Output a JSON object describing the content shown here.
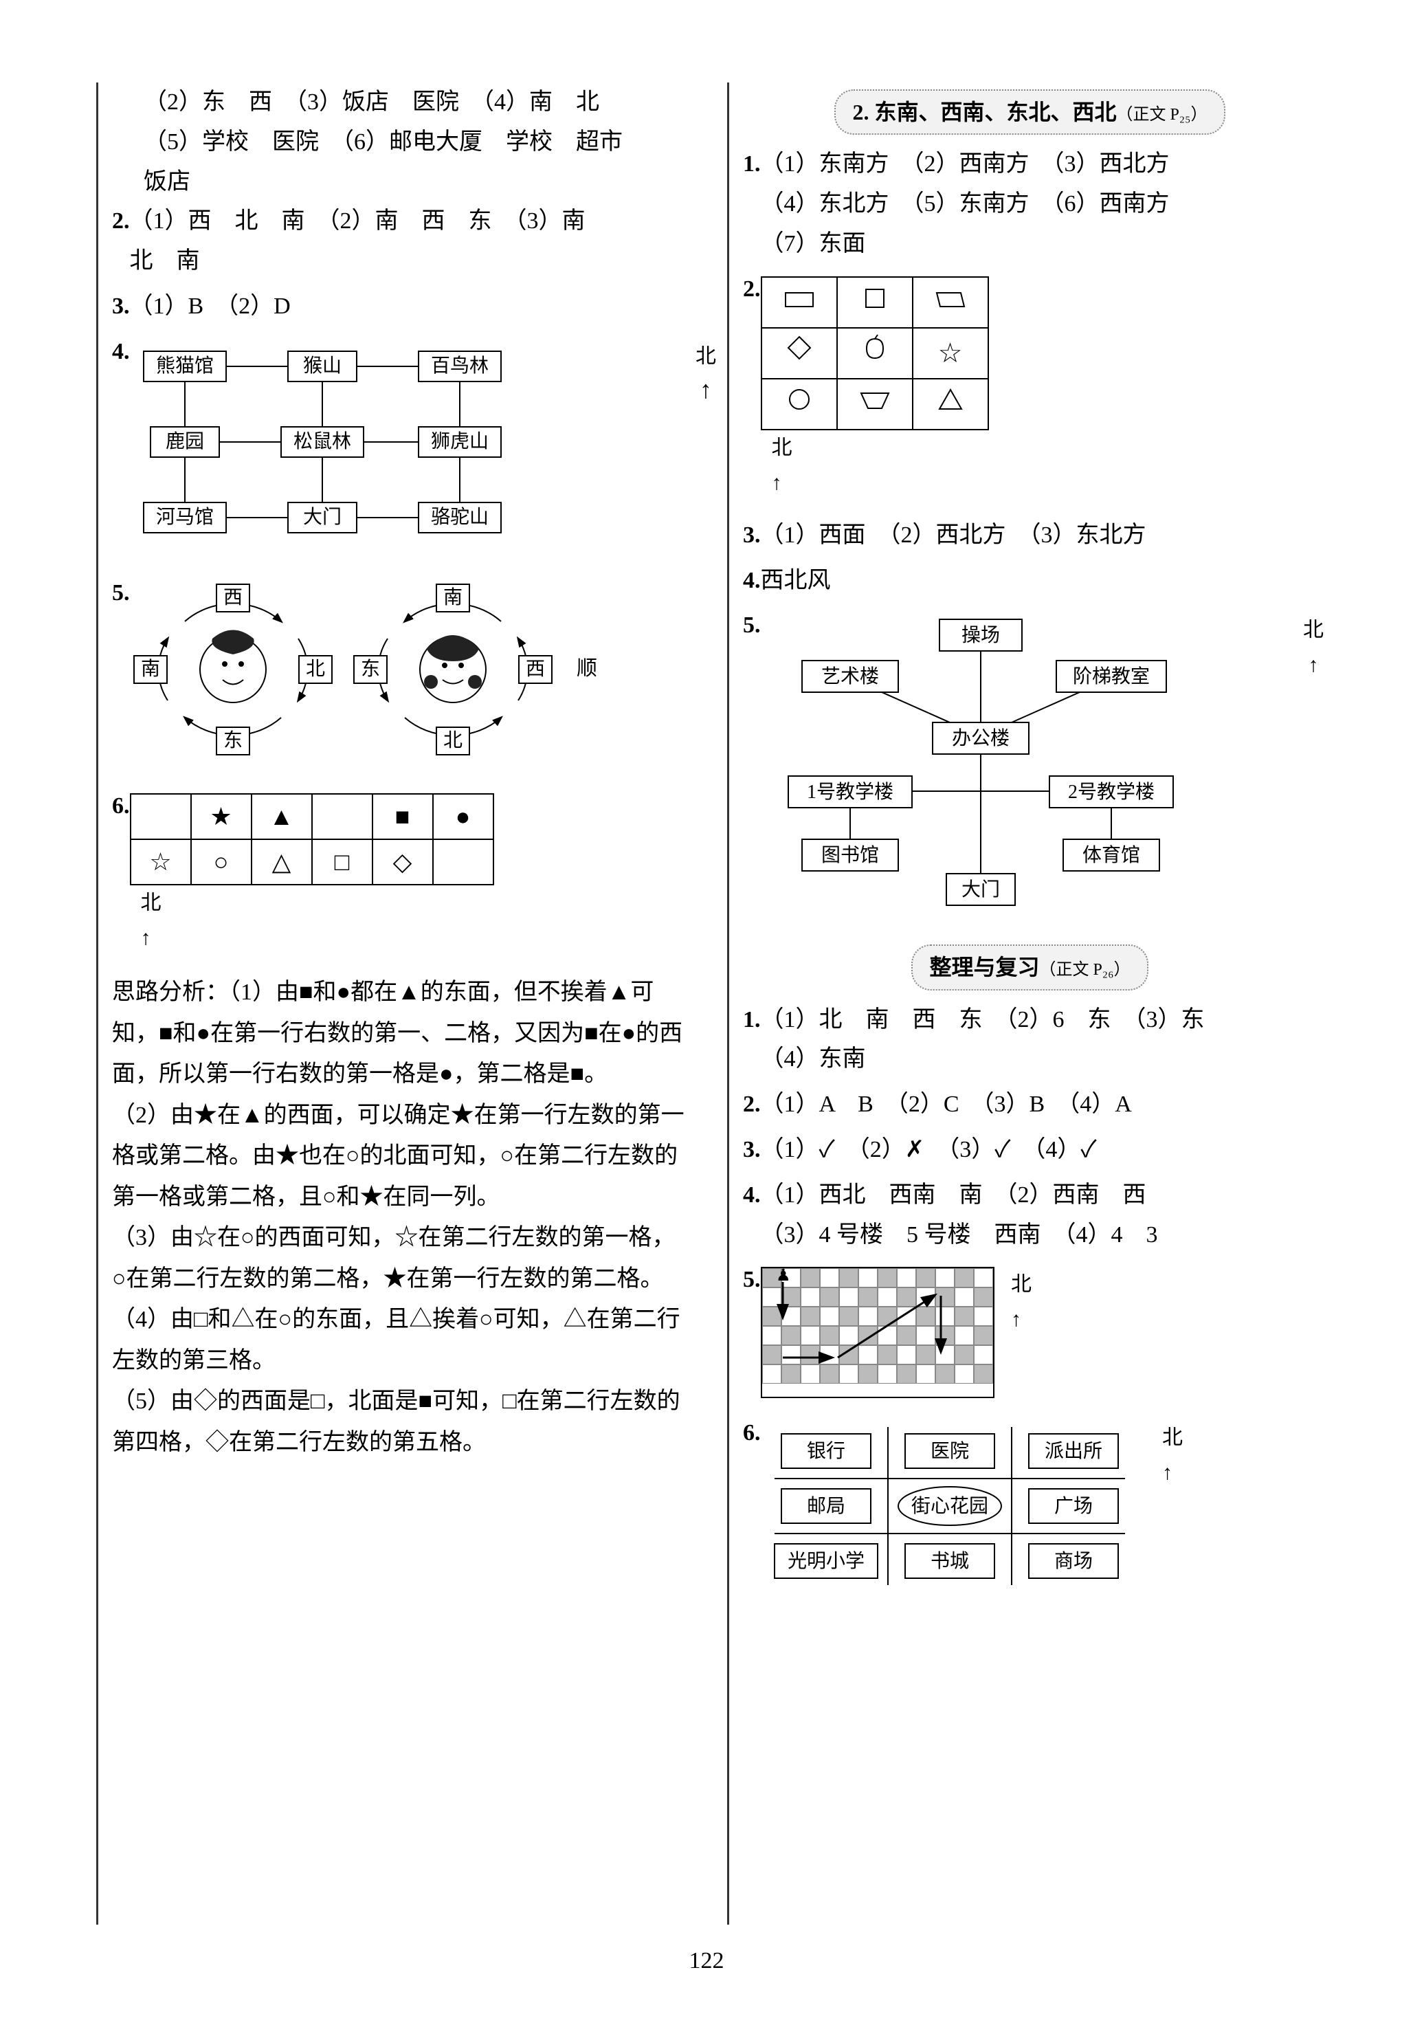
{
  "page_number": "122",
  "left": {
    "q1_line1": "（2）东　西　（3）饭店　医院　（4）南　北",
    "q1_line2": "（5）学校　医院　（6）邮电大厦　学校　超市",
    "q1_line3": "饭店",
    "q2_num": "2.",
    "q2_line1": "（1）西　北　南　（2）南　西　东　（3）南",
    "q2_line2": "北　南",
    "q3_num": "3.",
    "q3_text": "（1）B　（2）D",
    "q4_num": "4.",
    "north_label": "北",
    "zoo": {
      "a": "熊猫馆",
      "b": "猴山",
      "c": "百鸟林",
      "d": "鹿园",
      "e": "松鼠林",
      "f": "狮虎山",
      "g": "河马馆",
      "h": "大门",
      "i": "骆驼山"
    },
    "q5_num": "5.",
    "compass": {
      "l_top": "西",
      "l_right": "北",
      "l_bottom": "东",
      "l_left": "南",
      "r_top": "南",
      "r_right": "西",
      "r_bottom": "北",
      "r_left": "东",
      "clockwise": "顺"
    },
    "q6_num": "6.",
    "grid6": {
      "r0": [
        "",
        "★",
        "▲",
        "",
        "■",
        "●"
      ],
      "r1": [
        "☆",
        "○",
        "△",
        "□",
        "◇",
        ""
      ]
    },
    "analysis_head": "思路分析：",
    "ana_p1": "（1）由■和●都在▲的东面，但不挨着▲可知，■和●在第一行右数的第一、二格，又因为■在●的西面，所以第一行右数的第一格是●，第二格是■。",
    "ana_p2": "（2）由★在▲的西面，可以确定★在第一行左数的第一格或第二格。由★也在○的北面可知，○在第二行左数的第一格或第二格，且○和★在同一列。",
    "ana_p3": "（3）由☆在○的西面可知，☆在第二行左数的第一格，○在第二行左数的第二格，★在第一行左数的第二格。",
    "ana_p4": "（4）由□和△在○的东面，且△挨着○可知，△在第二行左数的第三格。",
    "ana_p5": "（5）由◇的西面是□，北面是■可知，□在第二行左数的第四格，◇在第二行左数的第五格。"
  },
  "right": {
    "hdr1": "2. 东南、西南、东北、西北",
    "hdr1_sub": "（正文 P₂₅）",
    "q1_num": "1.",
    "q1_line1": "（1）东南方　（2）西南方　（3）西北方",
    "q1_line2": "（4）东北方　（5）东南方　（6）西南方",
    "q1_line3": "（7）东面",
    "q2_num": "2.",
    "north_label": "北",
    "shape_grid_note": "shape-grid",
    "q3_num": "3.",
    "q3_text": "（1）西面　（2）西北方　（3）东北方",
    "q4_num": "4.",
    "q4_text": "西北风",
    "q5_num": "5.",
    "campus": {
      "a": "操场",
      "b": "艺术楼",
      "c": "阶梯教室",
      "d": "办公楼",
      "e": "1号教学楼",
      "f": "2号教学楼",
      "g": "图书馆",
      "h": "体育馆",
      "i": "大门"
    },
    "hdr2": "整理与复习",
    "hdr2_sub": "（正文 P₂₆）",
    "r1_num": "1.",
    "r1_line1": "（1）北　南　西　东　（2）6　东　（3）东",
    "r1_line2": "（4）东南",
    "r2_num": "2.",
    "r2_text": "（1）A　B　（2）C　（3）B　（4）A",
    "r3_num": "3.",
    "r3_text": "（1）✓　（2）✗　（3）✓　（4）✓",
    "r4_num": "4.",
    "r4_line1": "（1）西北　西南　南　（2）西南　西",
    "r4_line2": "（3）4 号楼　5 号楼　西南　（4）4　3",
    "r5_num": "5.",
    "checker": {
      "rows": 6,
      "cols": 12
    },
    "r6_num": "6.",
    "places": {
      "a": "银行",
      "b": "医院",
      "c": "派出所",
      "d": "邮局",
      "e": "街心花园",
      "f": "广场",
      "g": "光明小学",
      "h": "书城",
      "i": "商场"
    }
  },
  "colors": {
    "text": "#000000",
    "bg": "#ffffff",
    "grid_dark": "#bbbbbb",
    "dotted": "#888888"
  }
}
